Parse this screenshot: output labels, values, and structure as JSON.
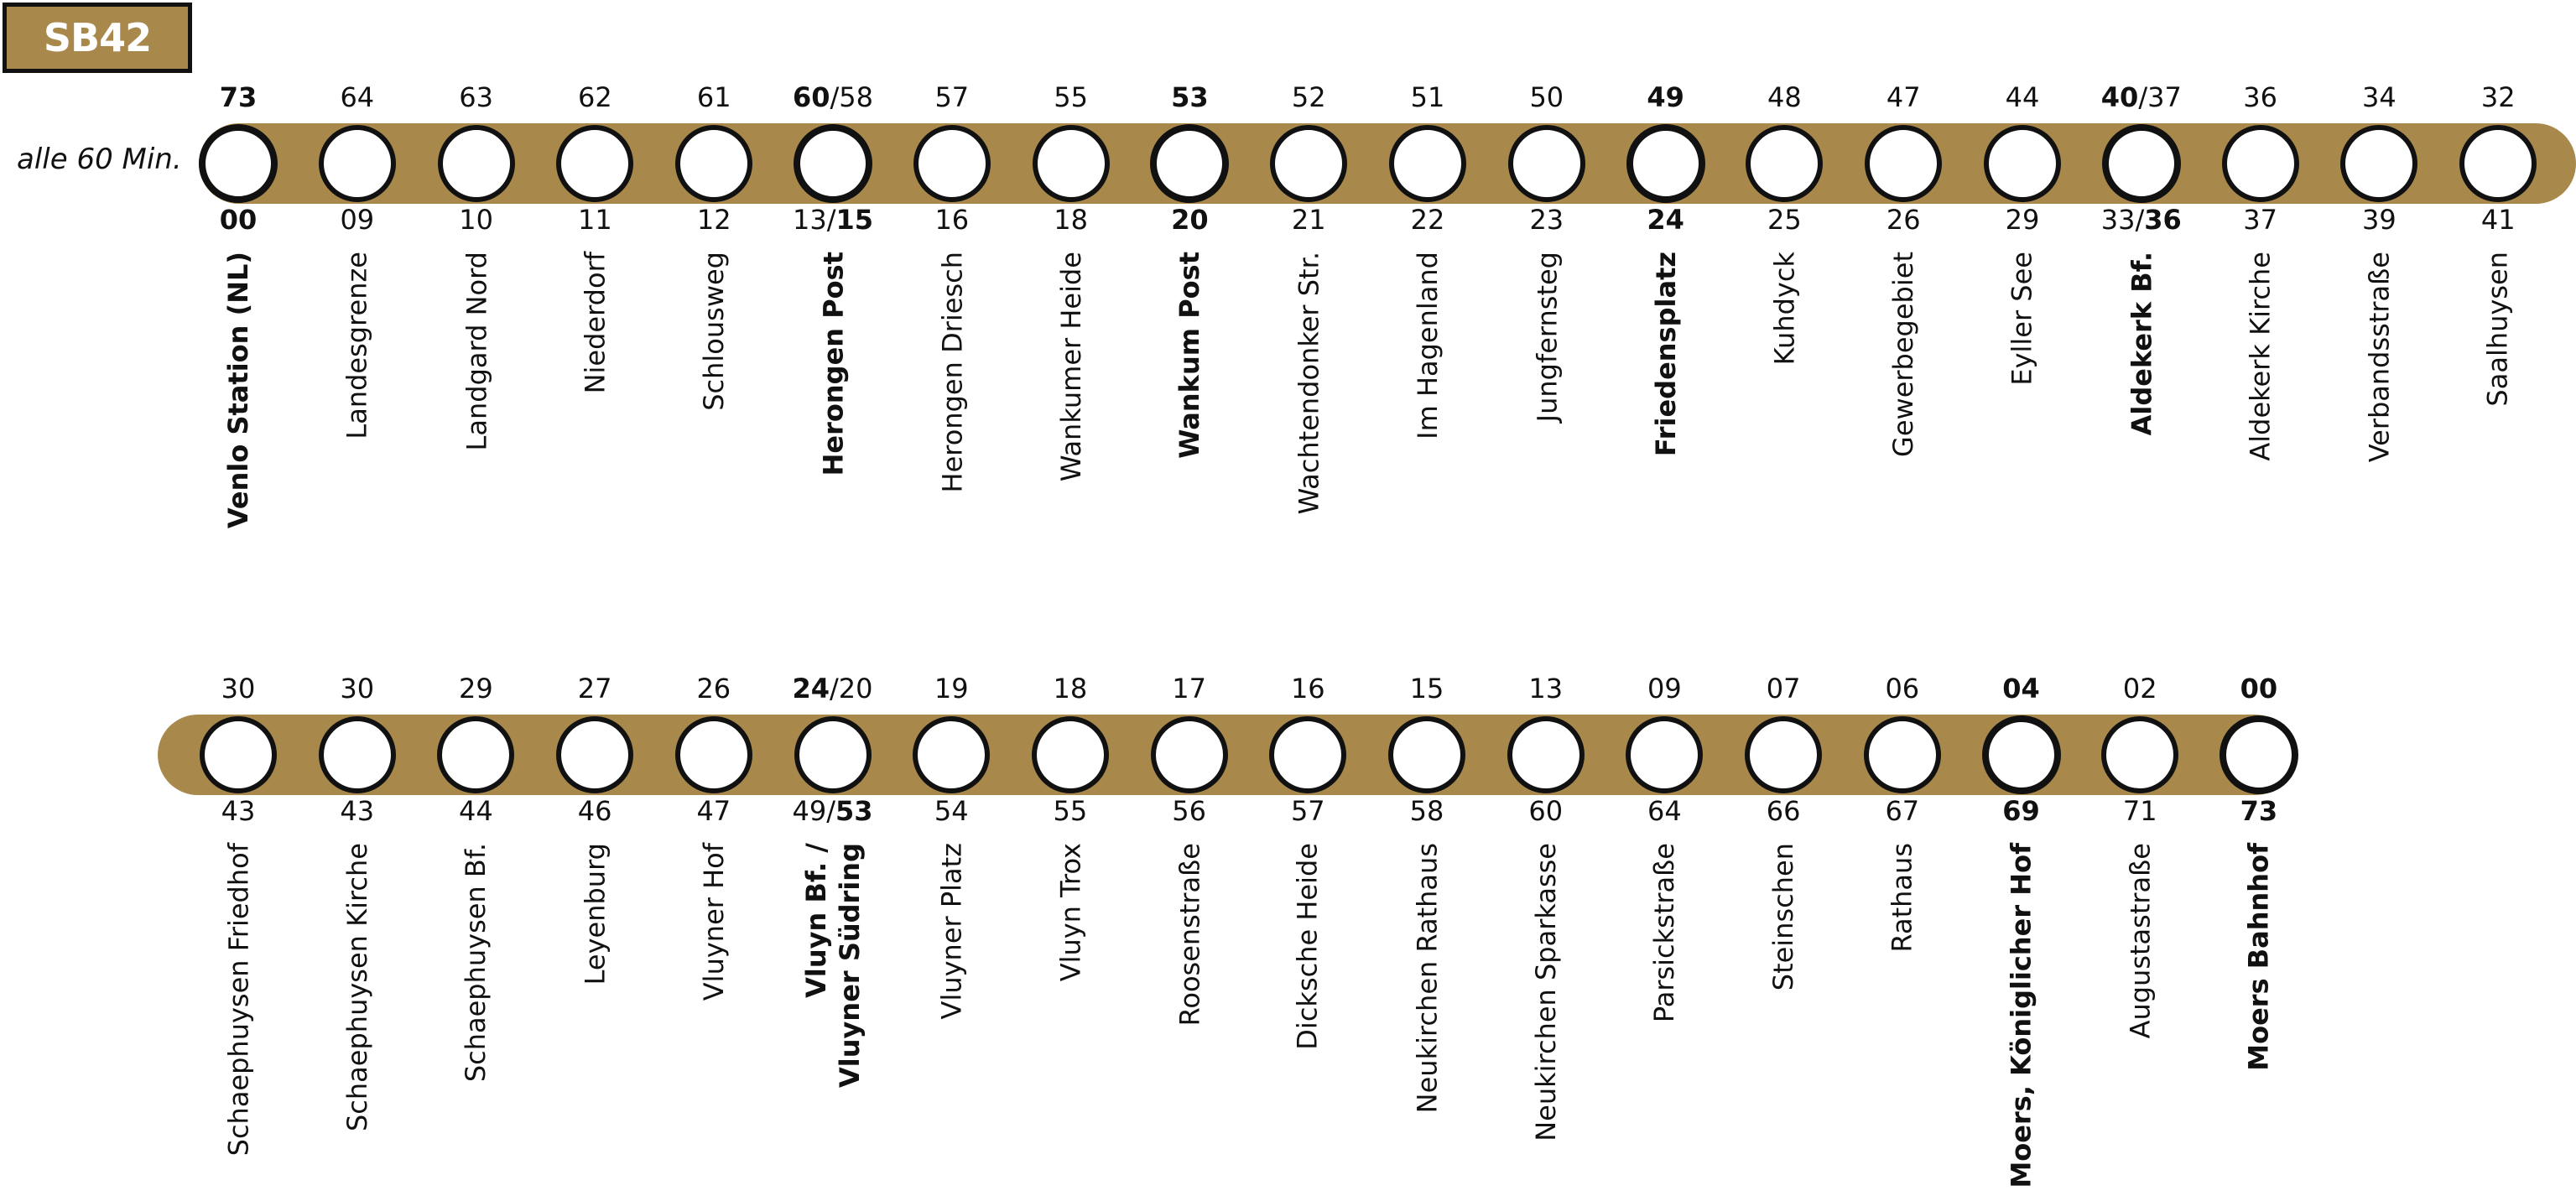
{
  "line": "SB42",
  "frequency": "alle 60 Min.",
  "colors": {
    "band": "#a8894b",
    "ring": "#111111"
  },
  "rows": [
    {
      "stops": [
        {
          "name": "Venlo Station (NL)",
          "major": true,
          "top": [
            {
              "t": "73",
              "b": true
            }
          ],
          "bottom": [
            {
              "t": "00",
              "b": true
            }
          ]
        },
        {
          "name": "Landesgrenze",
          "top": [
            {
              "t": "64"
            }
          ],
          "bottom": [
            {
              "t": "09"
            }
          ]
        },
        {
          "name": "Landgard Nord",
          "top": [
            {
              "t": "63"
            }
          ],
          "bottom": [
            {
              "t": "10"
            }
          ]
        },
        {
          "name": "Niederdorf",
          "top": [
            {
              "t": "62"
            }
          ],
          "bottom": [
            {
              "t": "11"
            }
          ]
        },
        {
          "name": "Schlousweg",
          "top": [
            {
              "t": "61"
            }
          ],
          "bottom": [
            {
              "t": "12"
            }
          ]
        },
        {
          "name": "Herongen Post",
          "major": true,
          "top": [
            {
              "t": "60",
              "b": true
            },
            {
              "t": "/58"
            }
          ],
          "bottom": [
            {
              "t": "13/"
            },
            {
              "t": "15",
              "b": true
            }
          ]
        },
        {
          "name": "Herongen Driesch",
          "top": [
            {
              "t": "57"
            }
          ],
          "bottom": [
            {
              "t": "16"
            }
          ]
        },
        {
          "name": "Wankumer Heide",
          "top": [
            {
              "t": "55"
            }
          ],
          "bottom": [
            {
              "t": "18"
            }
          ]
        },
        {
          "name": "Wankum Post",
          "major": true,
          "top": [
            {
              "t": "53",
              "b": true
            }
          ],
          "bottom": [
            {
              "t": "20",
              "b": true
            }
          ]
        },
        {
          "name": "Wachtendonker Str.",
          "top": [
            {
              "t": "52"
            }
          ],
          "bottom": [
            {
              "t": "21"
            }
          ]
        },
        {
          "name": "Im Hagenland",
          "top": [
            {
              "t": "51"
            }
          ],
          "bottom": [
            {
              "t": "22"
            }
          ]
        },
        {
          "name": "Jungfernsteg",
          "top": [
            {
              "t": "50"
            }
          ],
          "bottom": [
            {
              "t": "23"
            }
          ]
        },
        {
          "name": "Friedensplatz",
          "major": true,
          "top": [
            {
              "t": "49",
              "b": true
            }
          ],
          "bottom": [
            {
              "t": "24",
              "b": true
            }
          ]
        },
        {
          "name": "Kuhdyck",
          "top": [
            {
              "t": "48"
            }
          ],
          "bottom": [
            {
              "t": "25"
            }
          ]
        },
        {
          "name": "Gewerbegebiet",
          "top": [
            {
              "t": "47"
            }
          ],
          "bottom": [
            {
              "t": "26"
            }
          ]
        },
        {
          "name": "Eyller See",
          "top": [
            {
              "t": "44"
            }
          ],
          "bottom": [
            {
              "t": "29"
            }
          ]
        },
        {
          "name": "Aldekerk Bf.",
          "major": true,
          "top": [
            {
              "t": "40",
              "b": true
            },
            {
              "t": "/37"
            }
          ],
          "bottom": [
            {
              "t": "33/"
            },
            {
              "t": "36",
              "b": true
            }
          ]
        },
        {
          "name": "Aldekerk Kirche",
          "top": [
            {
              "t": "36"
            }
          ],
          "bottom": [
            {
              "t": "37"
            }
          ]
        },
        {
          "name": "Verbandsstraße",
          "top": [
            {
              "t": "34"
            }
          ],
          "bottom": [
            {
              "t": "39"
            }
          ]
        },
        {
          "name": "Saalhuysen",
          "top": [
            {
              "t": "32"
            }
          ],
          "bottom": [
            {
              "t": "41"
            }
          ]
        }
      ]
    },
    {
      "stops": [
        {
          "name": "Schaephuysen Friedhof",
          "top": [
            {
              "t": "30"
            }
          ],
          "bottom": [
            {
              "t": "43"
            }
          ]
        },
        {
          "name": "Schaephuysen Kirche",
          "top": [
            {
              "t": "30"
            }
          ],
          "bottom": [
            {
              "t": "43"
            }
          ]
        },
        {
          "name": "Schaephuysen Bf.",
          "top": [
            {
              "t": "29"
            }
          ],
          "bottom": [
            {
              "t": "44"
            }
          ]
        },
        {
          "name": "Leyenburg",
          "top": [
            {
              "t": "27"
            }
          ],
          "bottom": [
            {
              "t": "46"
            }
          ]
        },
        {
          "name": "Vluyner Hof",
          "top": [
            {
              "t": "26"
            }
          ],
          "bottom": [
            {
              "t": "47"
            }
          ]
        },
        {
          "name": "Vluyn Bf. /",
          "name2": "Vluyner Südring",
          "major": false,
          "top": [
            {
              "t": "24",
              "b": true
            },
            {
              "t": "/20"
            }
          ],
          "bottom": [
            {
              "t": "49/"
            },
            {
              "t": "53",
              "b": true
            }
          ]
        },
        {
          "name": "Vluyner Platz",
          "top": [
            {
              "t": "19"
            }
          ],
          "bottom": [
            {
              "t": "54"
            }
          ]
        },
        {
          "name": "Vluyn Trox",
          "top": [
            {
              "t": "18"
            }
          ],
          "bottom": [
            {
              "t": "55"
            }
          ]
        },
        {
          "name": "Roosenstraße",
          "top": [
            {
              "t": "17"
            }
          ],
          "bottom": [
            {
              "t": "56"
            }
          ]
        },
        {
          "name": "Dicksche Heide",
          "top": [
            {
              "t": "16"
            }
          ],
          "bottom": [
            {
              "t": "57"
            }
          ]
        },
        {
          "name": "Neukirchen Rathaus",
          "top": [
            {
              "t": "15"
            }
          ],
          "bottom": [
            {
              "t": "58"
            }
          ]
        },
        {
          "name": "Neukirchen Sparkasse",
          "top": [
            {
              "t": "13"
            }
          ],
          "bottom": [
            {
              "t": "60"
            }
          ]
        },
        {
          "name": "Parsickstraße",
          "top": [
            {
              "t": "09"
            }
          ],
          "bottom": [
            {
              "t": "64"
            }
          ]
        },
        {
          "name": "Steinschen",
          "top": [
            {
              "t": "07"
            }
          ],
          "bottom": [
            {
              "t": "66"
            }
          ]
        },
        {
          "name": "Rathaus",
          "top": [
            {
              "t": "06"
            }
          ],
          "bottom": [
            {
              "t": "67"
            }
          ]
        },
        {
          "name": "Moers, Königlicher Hof",
          "major": true,
          "top": [
            {
              "t": "04",
              "b": true
            }
          ],
          "bottom": [
            {
              "t": "69",
              "b": true
            }
          ]
        },
        {
          "name": "Augustastraße",
          "top": [
            {
              "t": "02"
            }
          ],
          "bottom": [
            {
              "t": "71"
            }
          ]
        },
        {
          "name": "Moers Bahnhof",
          "major": true,
          "top": [
            {
              "t": "00",
              "b": true
            }
          ],
          "bottom": [
            {
              "t": "73",
              "b": true
            }
          ]
        }
      ]
    }
  ]
}
